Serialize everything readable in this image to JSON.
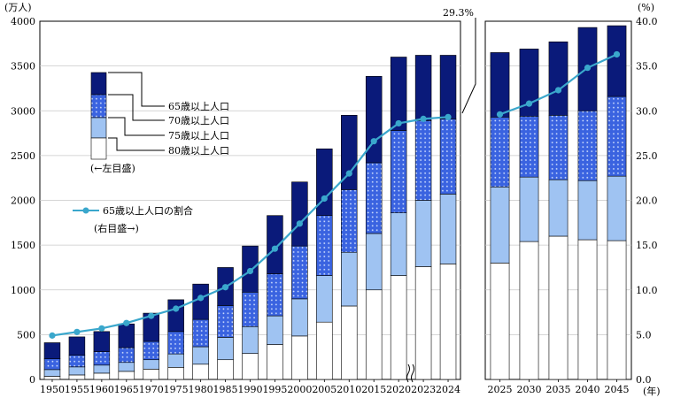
{
  "chart_data": {
    "type": "bar",
    "bar_mode": "stacked",
    "left_unit": "(万人)",
    "right_unit": "(%)",
    "year_unit": "(年)",
    "y_left_ticks": [
      "0",
      "500",
      "1000",
      "1500",
      "2000",
      "2500",
      "3000",
      "3500",
      "4000"
    ],
    "y_right_ticks": [
      "0.0",
      "5.0",
      "10.0",
      "15.0",
      "20.0",
      "25.0",
      "30.0",
      "35.0",
      "40.0"
    ],
    "ylim_left": [
      0,
      4000
    ],
    "ylim_right": [
      0,
      40
    ],
    "panels": [
      {
        "name": "actual",
        "categories": [
          "1950",
          "1955",
          "1960",
          "1965",
          "1970",
          "1975",
          "1980",
          "1985",
          "1990",
          "1995",
          "2000",
          "2005",
          "2010",
          "2015",
          "2020",
          "2023",
          "2024"
        ],
        "totals": [
          410,
          475,
          535,
          620,
          740,
          890,
          1065,
          1250,
          1490,
          1830,
          2205,
          2575,
          2950,
          3385,
          3600,
          3620,
          3620
        ],
        "age75_plus": [
          110,
          140,
          160,
          190,
          220,
          285,
          365,
          470,
          590,
          710,
          900,
          1160,
          1420,
          1630,
          1860,
          2000,
          2070
        ],
        "age80_plus": [
          35,
          50,
          70,
          90,
          115,
          135,
          170,
          220,
          290,
          390,
          485,
          640,
          820,
          1000,
          1160,
          1260,
          1290
        ],
        "age70_plus": [
          230,
          270,
          310,
          355,
          425,
          535,
          670,
          825,
          975,
          1180,
          1490,
          1830,
          2120,
          2420,
          2780,
          2890,
          2910
        ],
        "ratio": [
          4.9,
          5.3,
          5.7,
          6.3,
          7.1,
          7.9,
          9.1,
          10.3,
          12.1,
          14.6,
          17.4,
          20.2,
          23.0,
          26.6,
          28.6,
          29.1,
          29.3
        ]
      },
      {
        "name": "projection",
        "categories": [
          "2025",
          "2030",
          "2035",
          "2040",
          "2045"
        ],
        "totals": [
          3650,
          3690,
          3770,
          3930,
          3950
        ],
        "age75_plus": [
          2150,
          2260,
          2230,
          2220,
          2270
        ],
        "age80_plus": [
          1300,
          1540,
          1600,
          1560,
          1550
        ],
        "age70_plus": [
          2930,
          2940,
          2950,
          3000,
          3160
        ],
        "ratio": [
          29.6,
          30.8,
          32.3,
          34.8,
          36.3
        ]
      }
    ],
    "legend_bars": [
      "65歳以上人口",
      "70歳以上人口",
      "75歳以上人口",
      "80歳以上人口"
    ],
    "legend_bars_note": "(←左目盛)",
    "legend_line": "65歳以上人口の割合",
    "legend_line_note": "(右目盛→)",
    "annotation": "29.3%",
    "colors": {
      "age65": "#0a1a7a",
      "age70": "#3a63e0",
      "age75": "#9fc3f2",
      "age80": "#ffffff",
      "line": "#3aa7cc",
      "grid": "#bbbbbb"
    }
  }
}
